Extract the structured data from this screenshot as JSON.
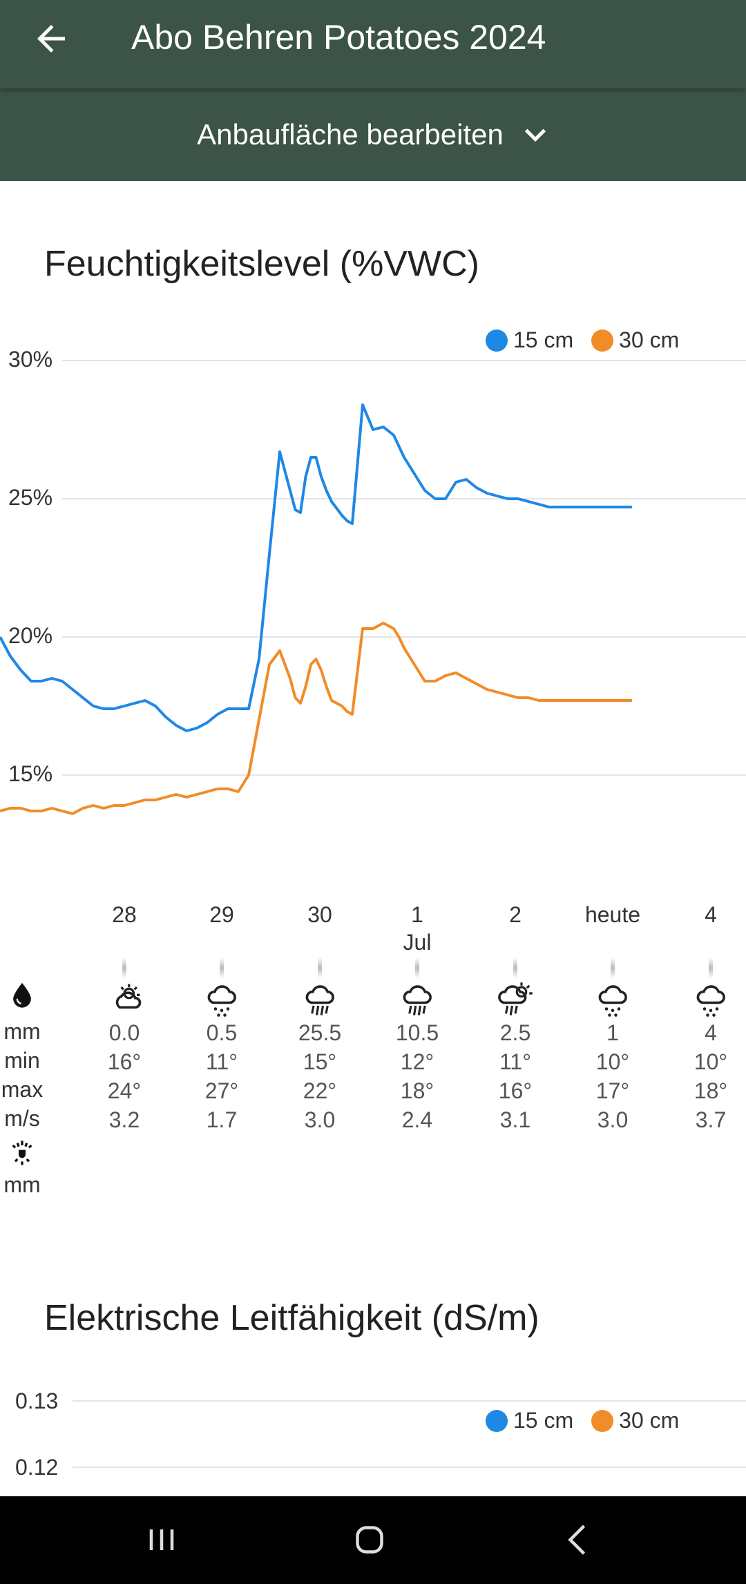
{
  "header": {
    "title": "Abo Behren Potatoes 2024",
    "back_icon": "arrow-left-icon"
  },
  "subheader": {
    "label": "Anbaufläche bearbeiten",
    "icon": "chevron-down-icon"
  },
  "moisture_section": {
    "title": "Feuchtigkeitslevel (%VWC)",
    "legend": [
      {
        "label": "15 cm",
        "color": "#1e88e5"
      },
      {
        "label": "30 cm",
        "color": "#f28c28"
      }
    ],
    "y_ticks": [
      "30%",
      "25%",
      "20%",
      "15%"
    ]
  },
  "chart_data": [
    {
      "type": "line",
      "title": "Feuchtigkeitslevel (%VWC)",
      "ylim": [
        12,
        31
      ],
      "y_ticks": [
        15,
        20,
        25,
        30
      ],
      "grid": true,
      "legend_placement": "top-right",
      "xlim": [
        27.2,
        34.4
      ],
      "series": [
        {
          "name": "15 cm",
          "color": "#1e88e5",
          "x": [
            27.2,
            27.3,
            27.4,
            27.5,
            27.6,
            27.7,
            27.8,
            27.9,
            28.0,
            28.1,
            28.2,
            28.3,
            28.4,
            28.5,
            28.6,
            28.7,
            28.8,
            28.9,
            29.0,
            29.1,
            29.2,
            29.3,
            29.4,
            29.5,
            29.6,
            29.7,
            29.8,
            29.9,
            30.0,
            30.05,
            30.1,
            30.15,
            30.2,
            30.25,
            30.3,
            30.35,
            30.4,
            30.5,
            30.55,
            30.6,
            30.7,
            30.8,
            30.9,
            31.0,
            31.05,
            31.1,
            31.15,
            31.2,
            31.25,
            31.3,
            31.4,
            31.5,
            31.6,
            31.7,
            31.8,
            31.9,
            32.0,
            32.1,
            32.2,
            32.3,
            32.4,
            32.5,
            32.6,
            32.7,
            32.8,
            32.9,
            33.0,
            33.1,
            33.2,
            33.3
          ],
          "values": [
            20.0,
            19.3,
            18.8,
            18.4,
            18.4,
            18.5,
            18.4,
            18.1,
            17.8,
            17.5,
            17.4,
            17.4,
            17.5,
            17.6,
            17.7,
            17.5,
            17.1,
            16.8,
            16.6,
            16.7,
            16.9,
            17.2,
            17.4,
            17.4,
            17.4,
            19.2,
            23.0,
            26.7,
            25.3,
            24.6,
            24.5,
            25.8,
            26.5,
            26.5,
            25.8,
            25.3,
            24.9,
            24.4,
            24.2,
            24.1,
            28.4,
            27.5,
            27.6,
            27.3,
            26.9,
            26.5,
            26.2,
            25.9,
            25.6,
            25.3,
            25.0,
            25.0,
            25.6,
            25.7,
            25.4,
            25.2,
            25.1,
            25.0,
            25.0,
            24.9,
            24.8,
            24.7,
            24.7,
            24.7,
            24.7,
            24.7,
            24.7,
            24.7,
            24.7,
            24.7
          ]
        },
        {
          "name": "30 cm",
          "color": "#f28c28",
          "x": [
            27.2,
            27.3,
            27.4,
            27.5,
            27.6,
            27.7,
            27.8,
            27.9,
            28.0,
            28.1,
            28.2,
            28.3,
            28.4,
            28.5,
            28.6,
            28.7,
            28.8,
            28.9,
            29.0,
            29.1,
            29.2,
            29.3,
            29.4,
            29.5,
            29.6,
            29.7,
            29.8,
            29.9,
            30.0,
            30.05,
            30.1,
            30.15,
            30.2,
            30.25,
            30.3,
            30.35,
            30.4,
            30.5,
            30.55,
            30.6,
            30.7,
            30.8,
            30.9,
            31.0,
            31.05,
            31.1,
            31.15,
            31.2,
            31.25,
            31.3,
            31.4,
            31.5,
            31.6,
            31.7,
            31.8,
            31.9,
            32.0,
            32.1,
            32.2,
            32.3,
            32.4,
            32.5,
            32.6,
            32.7,
            32.8,
            32.9,
            33.0,
            33.1,
            33.2,
            33.3
          ],
          "values": [
            13.7,
            13.8,
            13.8,
            13.7,
            13.7,
            13.8,
            13.7,
            13.6,
            13.8,
            13.9,
            13.8,
            13.9,
            13.9,
            14.0,
            14.1,
            14.1,
            14.2,
            14.3,
            14.2,
            14.3,
            14.4,
            14.5,
            14.5,
            14.4,
            15.0,
            17.0,
            19.0,
            19.5,
            18.5,
            17.8,
            17.6,
            18.2,
            19.0,
            19.2,
            18.8,
            18.2,
            17.7,
            17.5,
            17.3,
            17.2,
            20.3,
            20.3,
            20.5,
            20.3,
            20.0,
            19.6,
            19.3,
            19.0,
            18.7,
            18.4,
            18.4,
            18.6,
            18.7,
            18.5,
            18.3,
            18.1,
            18.0,
            17.9,
            17.8,
            17.8,
            17.7,
            17.7,
            17.7,
            17.7,
            17.7,
            17.7,
            17.7,
            17.7,
            17.7,
            17.7
          ]
        }
      ]
    },
    {
      "type": "line",
      "title": "Elektrische Leitfähigkeit (dS/m)",
      "y_ticks": [
        0.13,
        0.12
      ],
      "legend_placement": "top-right",
      "series": [
        {
          "name": "15 cm",
          "color": "#1e88e5",
          "values": []
        },
        {
          "name": "30 cm",
          "color": "#f28c28",
          "values": []
        }
      ]
    }
  ],
  "weather": {
    "row_labels": {
      "rain_icon": "water-drop-icon",
      "rain_unit": "mm",
      "min": "min",
      "max": "max",
      "wind": "m/s",
      "irrigation_icon": "sprinkler-icon",
      "irrigation_unit": "mm"
    },
    "days": [
      {
        "day": "28",
        "month": "",
        "icon": "partly-cloudy-icon",
        "rain": "0.0",
        "min": "16°",
        "max": "24°",
        "wind": "3.2"
      },
      {
        "day": "29",
        "month": "",
        "icon": "drizzle-icon",
        "rain": "0.5",
        "min": "11°",
        "max": "27°",
        "wind": "1.7"
      },
      {
        "day": "30",
        "month": "",
        "icon": "rain-icon",
        "rain": "25.5",
        "min": "15°",
        "max": "22°",
        "wind": "3.0"
      },
      {
        "day": "1",
        "month": "Jul",
        "icon": "rain-icon",
        "rain": "10.5",
        "min": "12°",
        "max": "18°",
        "wind": "2.4"
      },
      {
        "day": "2",
        "month": "",
        "icon": "sun-rain-icon",
        "rain": "2.5",
        "min": "11°",
        "max": "16°",
        "wind": "3.1"
      },
      {
        "day": "heute",
        "month": "",
        "icon": "drizzle-icon",
        "rain": "1",
        "min": "10°",
        "max": "17°",
        "wind": "3.0"
      },
      {
        "day": "4",
        "month": "",
        "icon": "drizzle-icon",
        "rain": "4",
        "min": "10°",
        "max": "18°",
        "wind": "3.7"
      }
    ]
  },
  "ec_section": {
    "title": "Elektrische Leitfähigkeit (dS/m)",
    "legend": [
      {
        "label": "15 cm",
        "color": "#1e88e5"
      },
      {
        "label": "30 cm",
        "color": "#f28c28"
      }
    ],
    "y_ticks": [
      "0.13",
      "0.12"
    ]
  },
  "navbar": {
    "recent_icon": "recent-apps-icon",
    "home_icon": "home-icon",
    "back_icon": "nav-back-icon"
  }
}
